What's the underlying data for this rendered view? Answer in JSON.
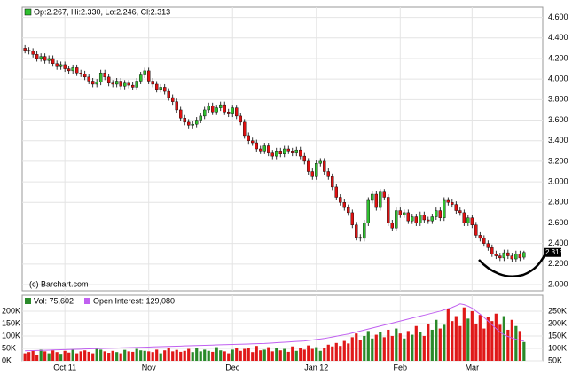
{
  "chart_data": {
    "type": "candlestick",
    "header": "Op:2.267, Hi:2.330, Lo:2.246, Cl:2.313",
    "watermark": "(c) Barchart.com",
    "up_color": "#2fbf2f",
    "down_color": "#dd1111",
    "ylim": [
      1.94,
      4.7
    ],
    "yticks": [
      {
        "value": 2.0,
        "label": "2.000"
      },
      {
        "value": 2.2,
        "label": "2.200"
      },
      {
        "value": 2.4,
        "label": "2.400"
      },
      {
        "value": 2.6,
        "label": "2.600"
      },
      {
        "value": 2.8,
        "label": "2.800"
      },
      {
        "value": 3.0,
        "label": "3.000"
      },
      {
        "value": 3.2,
        "label": "3.200"
      },
      {
        "value": 3.4,
        "label": "3.400"
      },
      {
        "value": 3.6,
        "label": "3.600"
      },
      {
        "value": 3.8,
        "label": "3.800"
      },
      {
        "value": 4.0,
        "label": "4.000"
      },
      {
        "value": 4.2,
        "label": "4.200"
      },
      {
        "value": 4.4,
        "label": "4.400"
      },
      {
        "value": 4.6,
        "label": "4.600"
      }
    ],
    "xlim": [
      -0.7,
      129.7
    ],
    "xticks": [
      {
        "value": 10,
        "label": "Oct 11"
      },
      {
        "value": 31,
        "label": "Nov"
      },
      {
        "value": 52,
        "label": "Dec"
      },
      {
        "value": 73,
        "label": "Jan 12"
      },
      {
        "value": 94,
        "label": "Feb"
      },
      {
        "value": 112,
        "label": "Mar"
      }
    ],
    "candles": [
      [
        4.3,
        4.33,
        4.25,
        4.28
      ],
      [
        4.28,
        4.31,
        4.24,
        4.27
      ],
      [
        4.27,
        4.3,
        4.21,
        4.24
      ],
      [
        4.24,
        4.27,
        4.17,
        4.2
      ],
      [
        4.2,
        4.25,
        4.17,
        4.22
      ],
      [
        4.22,
        4.25,
        4.15,
        4.18
      ],
      [
        4.18,
        4.23,
        4.15,
        4.2
      ],
      [
        4.2,
        4.23,
        4.12,
        4.15
      ],
      [
        4.15,
        4.18,
        4.09,
        4.12
      ],
      [
        4.12,
        4.17,
        4.09,
        4.14
      ],
      [
        4.14,
        4.17,
        4.07,
        4.1
      ],
      [
        4.1,
        4.13,
        4.05,
        4.08
      ],
      [
        4.08,
        4.14,
        4.05,
        4.11
      ],
      [
        4.11,
        4.14,
        4.03,
        4.06
      ],
      [
        4.06,
        4.09,
        4.02,
        4.05
      ],
      [
        4.05,
        4.08,
        3.99,
        4.02
      ],
      [
        4.02,
        4.05,
        3.95,
        3.98
      ],
      [
        3.98,
        4.01,
        3.92,
        3.95
      ],
      [
        3.95,
        4.0,
        3.92,
        3.97
      ],
      [
        3.97,
        4.09,
        3.94,
        4.06
      ],
      [
        4.06,
        4.09,
        3.99,
        4.02
      ],
      [
        4.02,
        4.05,
        3.93,
        3.96
      ],
      [
        3.96,
        3.99,
        3.92,
        3.95
      ],
      [
        3.95,
        4.01,
        3.92,
        3.98
      ],
      [
        3.98,
        4.01,
        3.9,
        3.93
      ],
      [
        3.93,
        3.99,
        3.9,
        3.96
      ],
      [
        3.96,
        3.99,
        3.91,
        3.94
      ],
      [
        3.94,
        3.97,
        3.89,
        3.92
      ],
      [
        3.92,
        4.01,
        3.89,
        3.98
      ],
      [
        3.98,
        4.07,
        3.95,
        4.04
      ],
      [
        4.04,
        4.11,
        4.01,
        4.08
      ],
      [
        4.08,
        4.11,
        3.95,
        3.98
      ],
      [
        3.98,
        4.01,
        3.92,
        3.95
      ],
      [
        3.95,
        3.98,
        3.87,
        3.9
      ],
      [
        3.9,
        3.95,
        3.87,
        3.92
      ],
      [
        3.92,
        3.95,
        3.85,
        3.88
      ],
      [
        3.88,
        3.91,
        3.79,
        3.82
      ],
      [
        3.82,
        3.85,
        3.75,
        3.78
      ],
      [
        3.78,
        3.81,
        3.67,
        3.7
      ],
      [
        3.7,
        3.73,
        3.59,
        3.62
      ],
      [
        3.62,
        3.65,
        3.55,
        3.58
      ],
      [
        3.58,
        3.61,
        3.52,
        3.55
      ],
      [
        3.55,
        3.59,
        3.52,
        3.56
      ],
      [
        3.56,
        3.63,
        3.53,
        3.6
      ],
      [
        3.6,
        3.67,
        3.57,
        3.64
      ],
      [
        3.64,
        3.73,
        3.61,
        3.7
      ],
      [
        3.7,
        3.77,
        3.67,
        3.74
      ],
      [
        3.74,
        3.77,
        3.65,
        3.68
      ],
      [
        3.68,
        3.75,
        3.65,
        3.72
      ],
      [
        3.72,
        3.78,
        3.69,
        3.75
      ],
      [
        3.75,
        3.78,
        3.65,
        3.68
      ],
      [
        3.68,
        3.71,
        3.63,
        3.66
      ],
      [
        3.66,
        3.75,
        3.63,
        3.72
      ],
      [
        3.72,
        3.75,
        3.61,
        3.64
      ],
      [
        3.64,
        3.67,
        3.55,
        3.58
      ],
      [
        3.58,
        3.61,
        3.42,
        3.45
      ],
      [
        3.45,
        3.48,
        3.37,
        3.4
      ],
      [
        3.4,
        3.43,
        3.35,
        3.38
      ],
      [
        3.38,
        3.41,
        3.29,
        3.32
      ],
      [
        3.32,
        3.35,
        3.27,
        3.3
      ],
      [
        3.3,
        3.38,
        3.27,
        3.35
      ],
      [
        3.35,
        3.38,
        3.25,
        3.28
      ],
      [
        3.28,
        3.31,
        3.22,
        3.25
      ],
      [
        3.25,
        3.33,
        3.22,
        3.3
      ],
      [
        3.3,
        3.33,
        3.24,
        3.27
      ],
      [
        3.27,
        3.35,
        3.24,
        3.32
      ],
      [
        3.32,
        3.35,
        3.27,
        3.3
      ],
      [
        3.3,
        3.33,
        3.25,
        3.28
      ],
      [
        3.28,
        3.34,
        3.25,
        3.31
      ],
      [
        3.31,
        3.34,
        3.22,
        3.25
      ],
      [
        3.25,
        3.28,
        3.17,
        3.2
      ],
      [
        3.2,
        3.23,
        3.07,
        3.1
      ],
      [
        3.1,
        3.13,
        3.02,
        3.05
      ],
      [
        3.05,
        3.21,
        3.02,
        3.18
      ],
      [
        3.18,
        3.23,
        3.15,
        3.2
      ],
      [
        3.2,
        3.23,
        3.07,
        3.1
      ],
      [
        3.1,
        3.13,
        3.02,
        3.05
      ],
      [
        3.05,
        3.08,
        2.92,
        2.95
      ],
      [
        2.95,
        2.98,
        2.82,
        2.85
      ],
      [
        2.85,
        2.88,
        2.77,
        2.8
      ],
      [
        2.8,
        2.83,
        2.72,
        2.75
      ],
      [
        2.75,
        2.78,
        2.67,
        2.7
      ],
      [
        2.7,
        2.73,
        2.55,
        2.58
      ],
      [
        2.58,
        2.61,
        2.43,
        2.46
      ],
      [
        2.46,
        2.49,
        2.42,
        2.45
      ],
      [
        2.45,
        2.63,
        2.42,
        2.6
      ],
      [
        2.6,
        2.85,
        2.57,
        2.82
      ],
      [
        2.82,
        2.91,
        2.79,
        2.88
      ],
      [
        2.88,
        2.91,
        2.72,
        2.75
      ],
      [
        2.75,
        2.93,
        2.72,
        2.9
      ],
      [
        2.9,
        2.93,
        2.82,
        2.85
      ],
      [
        2.85,
        2.88,
        2.57,
        2.6
      ],
      [
        2.6,
        2.63,
        2.52,
        2.55
      ],
      [
        2.55,
        2.75,
        2.52,
        2.72
      ],
      [
        2.72,
        2.75,
        2.65,
        2.68
      ],
      [
        2.68,
        2.73,
        2.65,
        2.7
      ],
      [
        2.7,
        2.73,
        2.59,
        2.62
      ],
      [
        2.62,
        2.69,
        2.59,
        2.66
      ],
      [
        2.66,
        2.69,
        2.57,
        2.6
      ],
      [
        2.6,
        2.71,
        2.57,
        2.68
      ],
      [
        2.68,
        2.71,
        2.6,
        2.63
      ],
      [
        2.63,
        2.66,
        2.59,
        2.62
      ],
      [
        2.62,
        2.69,
        2.59,
        2.66
      ],
      [
        2.66,
        2.75,
        2.63,
        2.72
      ],
      [
        2.72,
        2.75,
        2.62,
        2.65
      ],
      [
        2.65,
        2.85,
        2.62,
        2.82
      ],
      [
        2.82,
        2.85,
        2.77,
        2.8
      ],
      [
        2.8,
        2.83,
        2.75,
        2.78
      ],
      [
        2.78,
        2.81,
        2.69,
        2.72
      ],
      [
        2.72,
        2.75,
        2.67,
        2.7
      ],
      [
        2.7,
        2.73,
        2.57,
        2.6
      ],
      [
        2.6,
        2.68,
        2.57,
        2.65
      ],
      [
        2.65,
        2.68,
        2.55,
        2.58
      ],
      [
        2.58,
        2.61,
        2.45,
        2.48
      ],
      [
        2.48,
        2.51,
        2.42,
        2.45
      ],
      [
        2.45,
        2.48,
        2.37,
        2.4
      ],
      [
        2.4,
        2.43,
        2.33,
        2.36
      ],
      [
        2.36,
        2.39,
        2.27,
        2.3
      ],
      [
        2.3,
        2.33,
        2.25,
        2.28
      ],
      [
        2.28,
        2.31,
        2.23,
        2.26
      ],
      [
        2.26,
        2.34,
        2.23,
        2.31
      ],
      [
        2.31,
        2.34,
        2.25,
        2.28
      ],
      [
        2.28,
        2.31,
        2.22,
        2.25
      ],
      [
        2.25,
        2.33,
        2.22,
        2.3
      ],
      [
        2.3,
        2.33,
        2.23,
        2.26
      ],
      [
        2.267,
        2.33,
        2.246,
        2.313
      ]
    ],
    "volume": {
      "legend": "Vol: 75,602",
      "up_color": "#2a8a2a",
      "down_color": "#e01818",
      "ylim": [
        0,
        264000
      ],
      "yticks": [
        {
          "value": 0,
          "label": "0K"
        },
        {
          "value": 50000,
          "label": "50K"
        },
        {
          "value": 100000,
          "label": "100K"
        },
        {
          "value": 150000,
          "label": "150K"
        },
        {
          "value": 200000,
          "label": "200K"
        }
      ],
      "values": [
        30000,
        35000,
        40000,
        25000,
        45000,
        38000,
        30000,
        42000,
        35000,
        28000,
        40000,
        33000,
        45000,
        30000,
        38000,
        42000,
        36000,
        30000,
        50000,
        45000,
        38000,
        32000,
        40000,
        35000,
        30000,
        44000,
        38000,
        36000,
        48000,
        42000,
        40000,
        38000,
        35000,
        45000,
        30000,
        42000,
        50000,
        38000,
        44000,
        36000,
        40000,
        48000,
        35000,
        52000,
        38000,
        45000,
        40000,
        36000,
        55000,
        42000,
        38000,
        30000,
        45000,
        50000,
        40000,
        48000,
        52000,
        35000,
        60000,
        42000,
        45000,
        55000,
        38000,
        50000,
        42000,
        48000,
        36000,
        58000,
        40000,
        52000,
        45000,
        62000,
        48000,
        55000,
        40000,
        50000,
        65000,
        58000,
        72000,
        60000,
        80000,
        70000,
        95000,
        110000,
        85000,
        100000,
        120000,
        90000,
        105000,
        115000,
        95000,
        125000,
        100000,
        130000,
        110000,
        90000,
        120000,
        105000,
        140000,
        115000,
        100000,
        150000,
        125000,
        165000,
        130000,
        145000,
        210000,
        160000,
        180000,
        140000,
        215000,
        170000,
        200000,
        150000,
        185000,
        130000,
        175000,
        160000,
        190000,
        145000,
        180000,
        125000,
        165000,
        140000,
        120000,
        75602
      ]
    },
    "open_interest": {
      "legend": "Open Interest: 129,080",
      "color": "#c060f0",
      "y2lim": [
        50000,
        314000
      ],
      "y2ticks": [
        {
          "value": 50000,
          "label": "50K"
        },
        {
          "value": 100000,
          "label": "100K"
        },
        {
          "value": 150000,
          "label": "150K"
        },
        {
          "value": 200000,
          "label": "200K"
        },
        {
          "value": 250000,
          "label": "250K"
        }
      ],
      "values": [
        90000,
        90500,
        91000,
        91500,
        92000,
        92500,
        93000,
        93500,
        94000,
        94500,
        95000,
        95500,
        96000,
        96500,
        97000,
        97500,
        98000,
        98500,
        99000,
        99500,
        100000,
        100500,
        101000,
        101500,
        102000,
        102500,
        103000,
        103500,
        104000,
        104500,
        105000,
        105500,
        106000,
        106500,
        107000,
        107500,
        108000,
        108500,
        109000,
        109500,
        110000,
        110500,
        111000,
        111500,
        112000,
        112500,
        113000,
        113500,
        114000,
        114500,
        115000,
        115500,
        116000,
        116500,
        117000,
        117500,
        118000,
        118500,
        119000,
        119500,
        120000,
        121000,
        122000,
        123000,
        124000,
        125000,
        126000,
        127000,
        128000,
        129000,
        130000,
        132000,
        134000,
        136000,
        138000,
        140000,
        143000,
        146000,
        149000,
        152000,
        155000,
        158000,
        162000,
        166000,
        170000,
        174000,
        178000,
        182000,
        186000,
        190000,
        194000,
        198000,
        202000,
        206000,
        210000,
        214000,
        218000,
        222000,
        226000,
        230000,
        234000,
        238000,
        242000,
        246000,
        250000,
        255000,
        260000,
        265000,
        272000,
        279000,
        276000,
        270000,
        262000,
        250000,
        238000,
        225000,
        210000,
        195000,
        180000,
        165000,
        155000,
        148000,
        142000,
        137000,
        133000,
        129080
      ]
    }
  }
}
